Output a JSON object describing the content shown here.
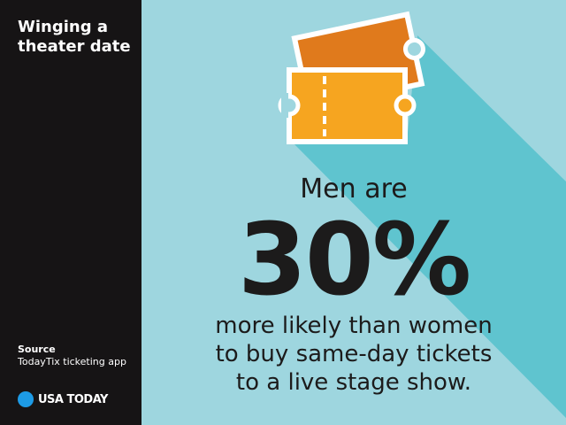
{
  "sidebar": {
    "title": "Winging a theater date",
    "source_label": "Source",
    "source": "TodayTix ticketing app",
    "logo": "USA TODAY"
  },
  "main": {
    "lead": "Men are",
    "stat": "30%",
    "lines": [
      "more likely than women",
      "to buy same-day tickets",
      "to a live stage show."
    ]
  }
}
